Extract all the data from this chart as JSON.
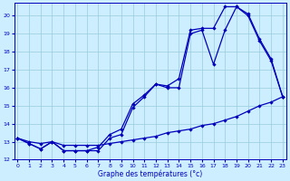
{
  "title": "Graphe des températures (°c)",
  "bg_color": "#cceeff",
  "line_color": "#0000bb",
  "grid_color": "#99ccdd",
  "line_bottom_x": [
    0,
    1,
    2,
    3,
    4,
    5,
    6,
    7,
    8,
    9,
    10,
    11,
    12,
    13,
    14,
    15,
    16,
    17,
    18,
    19,
    20,
    21,
    22,
    23
  ],
  "line_bottom_y": [
    13.2,
    13.0,
    12.9,
    13.0,
    12.8,
    12.8,
    12.8,
    12.8,
    12.9,
    13.0,
    13.1,
    13.2,
    13.3,
    13.5,
    13.6,
    13.7,
    13.9,
    14.0,
    14.2,
    14.4,
    14.7,
    15.0,
    15.2,
    15.5
  ],
  "line_mid_x": [
    0,
    1,
    2,
    3,
    4,
    5,
    6,
    7,
    8,
    9,
    10,
    11,
    12,
    13,
    14,
    15,
    16,
    17,
    18,
    19,
    20,
    21,
    22,
    23
  ],
  "line_mid_y": [
    13.2,
    12.9,
    12.6,
    13.0,
    12.5,
    12.5,
    12.5,
    12.5,
    13.2,
    13.4,
    14.9,
    15.5,
    16.2,
    16.0,
    16.0,
    19.0,
    19.2,
    17.3,
    19.2,
    20.5,
    20.0,
    18.6,
    17.5,
    15.5
  ],
  "line_top_x": [
    0,
    1,
    2,
    3,
    4,
    5,
    6,
    7,
    8,
    9,
    10,
    11,
    12,
    13,
    14,
    15,
    16,
    17,
    18,
    19,
    20,
    21,
    22,
    23
  ],
  "line_top_y": [
    13.2,
    12.9,
    12.6,
    13.0,
    12.5,
    12.5,
    12.5,
    12.7,
    13.4,
    13.7,
    15.1,
    15.6,
    16.2,
    16.1,
    16.5,
    19.2,
    19.3,
    19.3,
    20.5,
    20.5,
    20.1,
    18.7,
    17.6,
    15.5
  ],
  "ylim": [
    12,
    20.5
  ],
  "xlim": [
    -0.3,
    23.3
  ],
  "yticks": [
    12,
    13,
    14,
    15,
    16,
    17,
    18,
    19,
    20
  ],
  "xticks": [
    0,
    1,
    2,
    3,
    4,
    5,
    6,
    7,
    8,
    9,
    10,
    11,
    12,
    13,
    14,
    15,
    16,
    17,
    18,
    19,
    20,
    21,
    22,
    23
  ]
}
